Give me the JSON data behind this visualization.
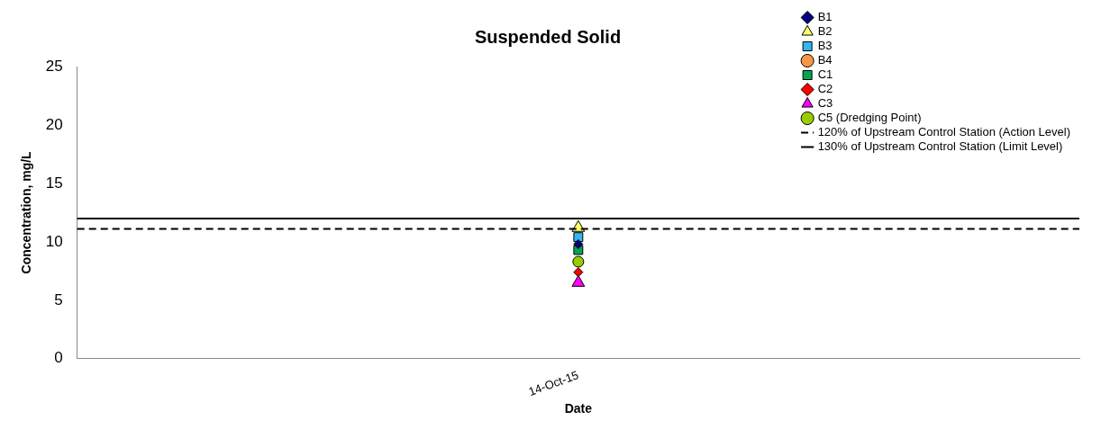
{
  "chart_data": {
    "type": "scatter",
    "title": "Suspended Solid",
    "xlabel": "Date",
    "ylabel": "Concentration, mg/L",
    "categories": [
      "14-Oct-15"
    ],
    "ylim": [
      0,
      25
    ],
    "yticks": [
      0,
      5,
      10,
      15,
      20,
      25
    ],
    "grid": false,
    "legend": "top right",
    "series": [
      {
        "name": "B1",
        "color": "#000080",
        "marker": "diamond",
        "x": [
          "14-Oct-15"
        ],
        "values": [
          9.8
        ]
      },
      {
        "name": "B2",
        "color": "#ffff66",
        "marker": "triangle",
        "x": [
          "14-Oct-15"
        ],
        "values": [
          11.2
        ]
      },
      {
        "name": "B3",
        "color": "#33b5f0",
        "marker": "square",
        "x": [
          "14-Oct-15"
        ],
        "values": [
          10.4
        ]
      },
      {
        "name": "B4",
        "color": "#f79646",
        "marker": "circle",
        "x": [
          "14-Oct-15"
        ],
        "values": [
          null
        ]
      },
      {
        "name": "C1",
        "color": "#00a650",
        "marker": "square",
        "x": [
          "14-Oct-15"
        ],
        "values": [
          9.3
        ]
      },
      {
        "name": "C2",
        "color": "#ff0000",
        "marker": "diamond",
        "x": [
          "14-Oct-15"
        ],
        "values": [
          7.4
        ]
      },
      {
        "name": "C3",
        "color": "#ff00ff",
        "marker": "triangle",
        "x": [
          "14-Oct-15"
        ],
        "values": [
          6.5
        ]
      },
      {
        "name": "C5 (Dredging Point)",
        "color": "#99cc00",
        "marker": "circle",
        "x": [
          "14-Oct-15"
        ],
        "values": [
          8.3
        ]
      }
    ],
    "ref_lines": [
      {
        "axis": "y",
        "value": 11.1,
        "label": "120% of Upstream Control Station (Action Level)",
        "color": "#000000",
        "line_style": "dashed"
      },
      {
        "axis": "y",
        "value": 12.0,
        "label": "130% of Upstream Control Station (Limit Level)",
        "color": "#000000",
        "line_style": "solid"
      }
    ]
  }
}
